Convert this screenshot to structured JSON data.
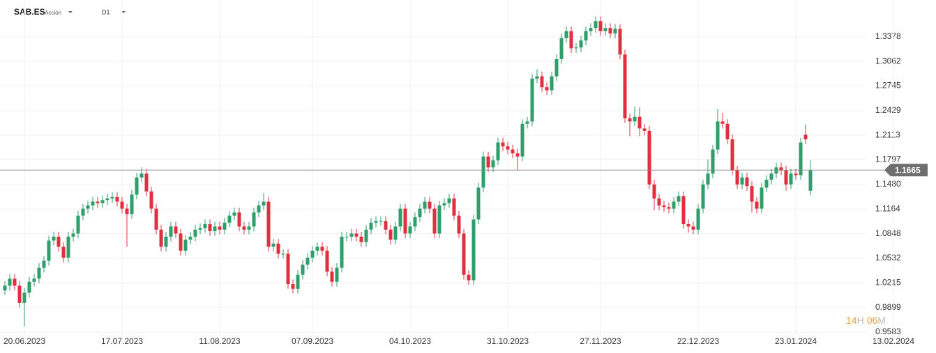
{
  "toolbar": {
    "symbol": "SAB.ES",
    "instrument_type": "Acción",
    "timeframe": "D1"
  },
  "countdown": {
    "hours": "14",
    "hours_unit": "H",
    "minutes": "06",
    "minutes_unit": "M"
  },
  "chart_data": {
    "type": "candlestick",
    "up_color": "#2e9e6b",
    "down_color": "#e0303f",
    "grid": true,
    "current_price": 1.1665,
    "ylim": [
      0.953,
      1.385
    ],
    "yticks": [
      0.9583,
      0.9899,
      1.0215,
      1.0532,
      1.0848,
      1.1164,
      {
        "value": 1.148,
        "label": "1.1480"
      },
      1.1797,
      1.2113,
      1.2429,
      1.2745,
      1.3062,
      1.3378
    ],
    "xlim": [
      -1,
      190
    ],
    "xticks": [
      {
        "value": 4,
        "label": "20.06.2023"
      },
      {
        "value": 24,
        "label": "17.07.2023"
      },
      {
        "value": 44,
        "label": "11.08.2023"
      },
      {
        "value": 63,
        "label": "07.09.2023"
      },
      {
        "value": 83,
        "label": "04.10.2023"
      },
      {
        "value": 103,
        "label": "31.10.2023"
      },
      {
        "value": 122,
        "label": "27.11.2023"
      },
      {
        "value": 142,
        "label": "22.12.2023"
      },
      {
        "value": 162,
        "label": "23.01.2024"
      },
      {
        "value": 182,
        "label": "13.02.2024"
      }
    ],
    "open": [
      1.012,
      1.018,
      1.027,
      1.018,
      0.996,
      1.009,
      1.023,
      1.027,
      1.041,
      1.05,
      1.076,
      1.081,
      1.068,
      1.054,
      1.081,
      1.085,
      1.108,
      1.117,
      1.121,
      1.126,
      1.124,
      1.128,
      1.13,
      1.132,
      1.126,
      1.117,
      1.11,
      1.135,
      1.157,
      1.162,
      1.139,
      1.117,
      1.09,
      1.068,
      1.081,
      1.094,
      1.085,
      1.063,
      1.077,
      1.081,
      1.09,
      1.092,
      1.097,
      1.088,
      1.094,
      1.09,
      1.099,
      1.108,
      1.112,
      1.094,
      1.09,
      1.094,
      1.112,
      1.121,
      1.126,
      1.068,
      1.072,
      1.059,
      1.059,
      1.02,
      1.014,
      1.032,
      1.045,
      1.054,
      1.063,
      1.068,
      1.063,
      1.036,
      1.023,
      1.041,
      1.081,
      1.081,
      1.085,
      1.081,
      1.074,
      1.09,
      1.099,
      1.101,
      1.101,
      1.09,
      1.077,
      1.094,
      1.117,
      1.085,
      1.094,
      1.106,
      1.117,
      1.126,
      1.117,
      1.085,
      1.121,
      1.124,
      1.13,
      1.108,
      1.085,
      1.032,
      1.025,
      1.103,
      1.144,
      1.184,
      1.17,
      1.179,
      1.202,
      1.197,
      1.193,
      1.188,
      1.184,
      1.226,
      1.229,
      1.284,
      1.287,
      1.273,
      1.269,
      1.287,
      1.309,
      1.336,
      1.345,
      1.323,
      1.324,
      1.333,
      1.345,
      1.349,
      1.358,
      1.345,
      1.349,
      1.342,
      1.348,
      1.315,
      1.233,
      1.229,
      1.235,
      1.22,
      1.217,
      1.148,
      1.13,
      1.121,
      1.119,
      1.117,
      1.126,
      1.133,
      1.097,
      1.094,
      1.09,
      1.117,
      1.148,
      1.162,
      1.193,
      1.229,
      1.226,
      1.206,
      1.166,
      1.148,
      1.157,
      1.146,
      1.126,
      1.117,
      1.144,
      1.154,
      1.162,
      1.17,
      1.166,
      1.148,
      1.162,
      1.16,
      1.212,
      1.14
    ],
    "high": [
      1.024,
      1.033,
      1.033,
      1.024,
      1.015,
      1.029,
      1.033,
      1.047,
      1.056,
      1.082,
      1.087,
      1.087,
      1.074,
      1.087,
      1.091,
      1.114,
      1.123,
      1.127,
      1.132,
      1.132,
      1.134,
      1.136,
      1.138,
      1.138,
      1.132,
      1.123,
      1.141,
      1.163,
      1.17,
      1.168,
      1.145,
      1.123,
      1.096,
      1.087,
      1.1,
      1.1,
      1.091,
      1.083,
      1.087,
      1.096,
      1.098,
      1.103,
      1.103,
      1.1,
      1.1,
      1.105,
      1.114,
      1.118,
      1.118,
      1.1,
      1.1,
      1.118,
      1.127,
      1.137,
      1.132,
      1.078,
      1.078,
      1.065,
      1.065,
      1.026,
      1.038,
      1.051,
      1.06,
      1.069,
      1.074,
      1.074,
      1.069,
      1.042,
      1.047,
      1.087,
      1.087,
      1.091,
      1.091,
      1.087,
      1.096,
      1.105,
      1.107,
      1.107,
      1.107,
      1.096,
      1.1,
      1.123,
      1.123,
      1.1,
      1.112,
      1.123,
      1.132,
      1.132,
      1.123,
      1.127,
      1.13,
      1.136,
      1.136,
      1.114,
      1.091,
      1.038,
      1.109,
      1.15,
      1.19,
      1.19,
      1.185,
      1.208,
      1.208,
      1.203,
      1.199,
      1.194,
      1.232,
      1.235,
      1.29,
      1.296,
      1.293,
      1.279,
      1.293,
      1.315,
      1.342,
      1.351,
      1.351,
      1.33,
      1.339,
      1.351,
      1.355,
      1.364,
      1.364,
      1.355,
      1.355,
      1.354,
      1.354,
      1.321,
      1.239,
      1.248,
      1.247,
      1.226,
      1.223,
      1.154,
      1.136,
      1.127,
      1.125,
      1.132,
      1.139,
      1.139,
      1.103,
      1.1,
      1.123,
      1.154,
      1.18,
      1.199,
      1.245,
      1.24,
      1.232,
      1.212,
      1.172,
      1.163,
      1.163,
      1.152,
      1.132,
      1.15,
      1.16,
      1.168,
      1.176,
      1.176,
      1.172,
      1.168,
      1.168,
      1.208,
      1.225,
      1.179
    ],
    "low": [
      1.006,
      1.012,
      1.012,
      0.99,
      0.966,
      1.003,
      1.017,
      1.021,
      1.035,
      1.044,
      1.07,
      1.062,
      1.048,
      1.048,
      1.075,
      1.079,
      1.102,
      1.111,
      1.115,
      1.118,
      1.118,
      1.122,
      1.124,
      1.12,
      1.111,
      1.068,
      1.104,
      1.129,
      1.151,
      1.133,
      1.111,
      1.084,
      1.062,
      1.062,
      1.075,
      1.079,
      1.057,
      1.057,
      1.071,
      1.075,
      1.084,
      1.086,
      1.082,
      1.082,
      1.084,
      1.084,
      1.093,
      1.102,
      1.088,
      1.084,
      1.084,
      1.088,
      1.106,
      1.115,
      1.062,
      1.062,
      1.053,
      1.053,
      1.014,
      1.008,
      1.008,
      1.026,
      1.039,
      1.048,
      1.057,
      1.057,
      1.03,
      1.017,
      1.017,
      1.035,
      1.075,
      1.075,
      1.075,
      1.068,
      1.068,
      1.084,
      1.093,
      1.095,
      1.084,
      1.071,
      1.071,
      1.088,
      1.079,
      1.079,
      1.088,
      1.1,
      1.111,
      1.111,
      1.079,
      1.079,
      1.115,
      1.118,
      1.102,
      1.079,
      1.026,
      1.019,
      1.019,
      1.097,
      1.138,
      1.164,
      1.164,
      1.173,
      1.191,
      1.187,
      1.182,
      1.166,
      1.178,
      1.22,
      1.223,
      1.278,
      1.267,
      1.263,
      1.263,
      1.281,
      1.303,
      1.33,
      1.317,
      1.317,
      1.318,
      1.327,
      1.339,
      1.343,
      1.339,
      1.339,
      1.336,
      1.336,
      1.309,
      1.227,
      1.21,
      1.223,
      1.21,
      1.211,
      1.142,
      1.115,
      1.115,
      1.113,
      1.111,
      1.111,
      1.12,
      1.091,
      1.086,
      1.084,
      1.084,
      1.111,
      1.142,
      1.156,
      1.187,
      1.22,
      1.2,
      1.16,
      1.142,
      1.142,
      1.14,
      1.112,
      1.111,
      1.111,
      1.138,
      1.148,
      1.156,
      1.16,
      1.14,
      1.142,
      1.154,
      1.154,
      1.2,
      1.134
    ],
    "close": [
      1.018,
      1.027,
      1.018,
      0.996,
      1.009,
      1.023,
      1.027,
      1.041,
      1.05,
      1.076,
      1.081,
      1.068,
      1.054,
      1.081,
      1.085,
      1.108,
      1.117,
      1.121,
      1.126,
      1.124,
      1.128,
      1.13,
      1.132,
      1.126,
      1.117,
      1.11,
      1.135,
      1.157,
      1.162,
      1.139,
      1.117,
      1.09,
      1.068,
      1.081,
      1.094,
      1.085,
      1.063,
      1.077,
      1.081,
      1.09,
      1.092,
      1.097,
      1.088,
      1.094,
      1.09,
      1.099,
      1.108,
      1.112,
      1.094,
      1.09,
      1.094,
      1.112,
      1.121,
      1.126,
      1.068,
      1.072,
      1.059,
      1.059,
      1.02,
      1.014,
      1.032,
      1.045,
      1.054,
      1.063,
      1.068,
      1.063,
      1.036,
      1.023,
      1.041,
      1.081,
      1.081,
      1.085,
      1.081,
      1.074,
      1.09,
      1.099,
      1.101,
      1.101,
      1.09,
      1.077,
      1.094,
      1.117,
      1.085,
      1.094,
      1.106,
      1.117,
      1.126,
      1.117,
      1.085,
      1.121,
      1.124,
      1.13,
      1.108,
      1.085,
      1.032,
      1.025,
      1.103,
      1.144,
      1.184,
      1.17,
      1.179,
      1.202,
      1.197,
      1.193,
      1.188,
      1.184,
      1.226,
      1.229,
      1.284,
      1.287,
      1.273,
      1.269,
      1.287,
      1.309,
      1.336,
      1.345,
      1.323,
      1.324,
      1.333,
      1.345,
      1.349,
      1.358,
      1.345,
      1.349,
      1.342,
      1.348,
      1.315,
      1.233,
      1.229,
      1.235,
      1.22,
      1.217,
      1.148,
      1.13,
      1.121,
      1.119,
      1.117,
      1.126,
      1.133,
      1.097,
      1.094,
      1.09,
      1.117,
      1.148,
      1.162,
      1.193,
      1.229,
      1.226,
      1.206,
      1.166,
      1.148,
      1.157,
      1.146,
      1.126,
      1.117,
      1.144,
      1.154,
      1.162,
      1.17,
      1.166,
      1.148,
      1.162,
      1.16,
      1.202,
      1.206,
      1.1665
    ]
  }
}
